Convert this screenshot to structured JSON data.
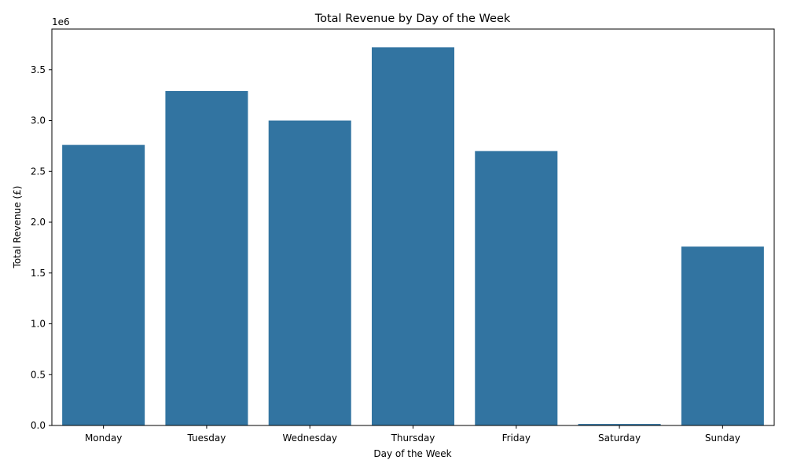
{
  "chart_data": {
    "type": "bar",
    "title": "Total Revenue by Day of the Week",
    "xlabel": "Day of the Week",
    "ylabel": "Total Revenue (£)",
    "offset_label": "1e6",
    "categories": [
      "Monday",
      "Tuesday",
      "Wednesday",
      "Thursday",
      "Friday",
      "Saturday",
      "Sunday"
    ],
    "values": [
      2760000,
      3290000,
      3000000,
      3720000,
      2700000,
      15000,
      1760000
    ],
    "ylim": [
      0,
      3900000
    ],
    "yticks": [
      0,
      500000,
      1000000,
      1500000,
      2000000,
      2500000,
      3000000,
      3500000
    ],
    "ytick_labels": [
      "0.0",
      "0.5",
      "1.0",
      "1.5",
      "2.0",
      "2.5",
      "3.0",
      "3.5"
    ],
    "bar_color": "#3274a1",
    "grid": false,
    "legend": "none"
  }
}
